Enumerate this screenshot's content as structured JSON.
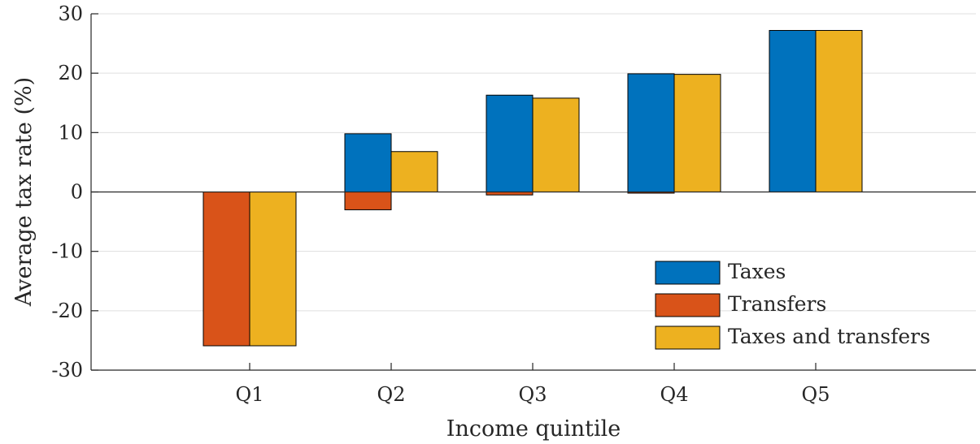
{
  "chart_data": {
    "type": "bar",
    "categories": [
      "Q1",
      "Q2",
      "Q3",
      "Q4",
      "Q5"
    ],
    "series": [
      {
        "name": "Taxes",
        "color": "#0072bd",
        "values": [
          0,
          9.8,
          16.3,
          19.9,
          27.2
        ]
      },
      {
        "name": "Transfers",
        "color": "#d95319",
        "values": [
          -25.9,
          -3.0,
          -0.5,
          -0.2,
          0
        ]
      },
      {
        "name": "Taxes and transfers",
        "color": "#edb120",
        "values": [
          -25.9,
          6.8,
          15.8,
          19.8,
          27.2
        ]
      }
    ],
    "layout_mode": "taxes_transfers_stacked_combined_beside",
    "xlabel": "Income quintile",
    "ylabel": "Average tax rate (%)",
    "ylim": [
      -30,
      30
    ],
    "yticks": [
      30,
      20,
      10,
      0,
      -10,
      -20,
      -30
    ],
    "ytick_labels": [
      "30",
      "20",
      "10",
      "0",
      "-10",
      "-20",
      "-30"
    ],
    "grid": true,
    "legend_position": "bottom-right"
  }
}
